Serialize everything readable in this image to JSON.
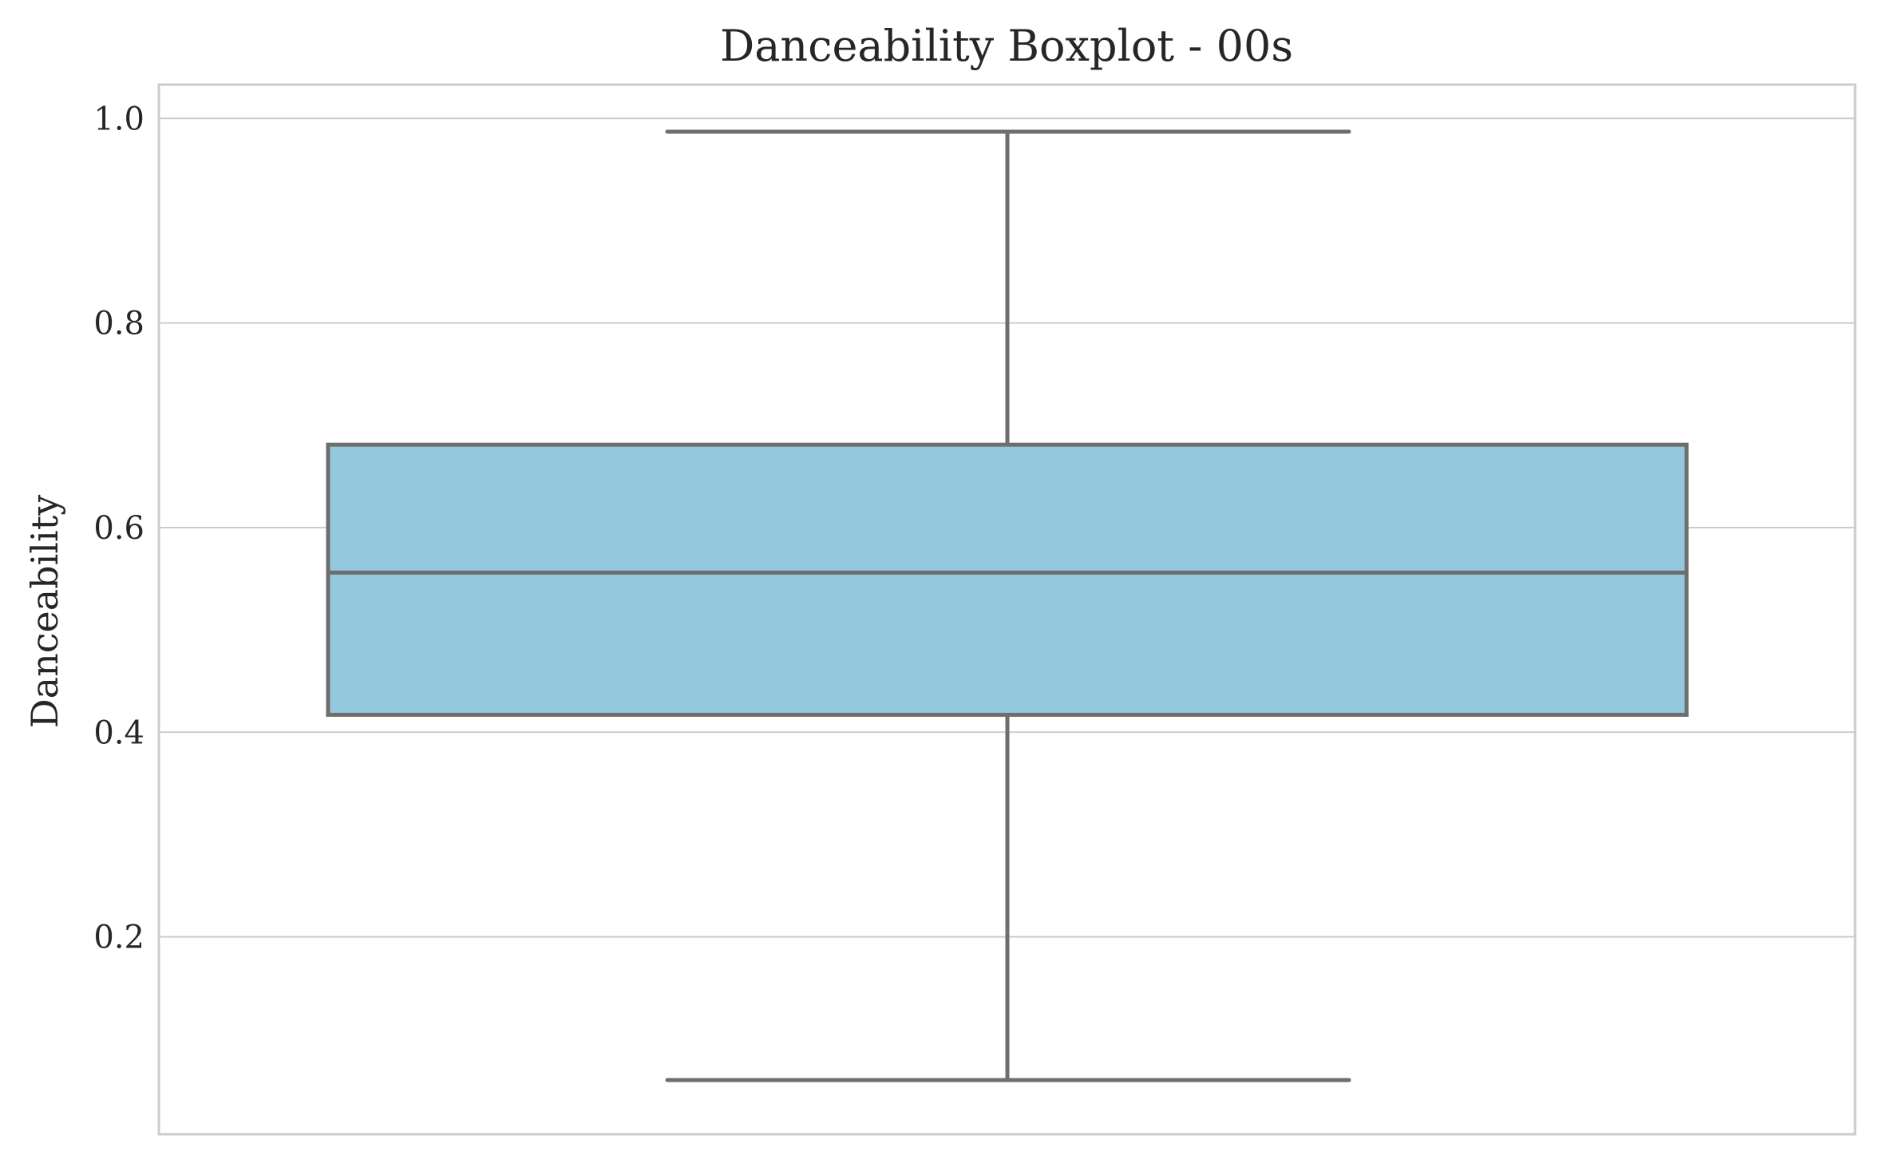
{
  "chart_data": {
    "type": "boxplot",
    "title": "Danceability Boxplot - 00s",
    "xlabel": "",
    "ylabel": "Danceability",
    "ylim": [
      0.007,
      1.033
    ],
    "yticks": [
      0.2,
      0.4,
      0.6,
      0.8,
      1.0
    ],
    "ytick_labels": [
      "0.2",
      "0.4",
      "0.6",
      "0.8",
      "1.0"
    ],
    "grid": true,
    "box": {
      "whisker_low": 0.06,
      "q1": 0.417,
      "median": 0.556,
      "q3": 0.681,
      "whisker_high": 0.987
    },
    "colors": {
      "box_fill": "#92c7de",
      "box_line": "#6e6e6e"
    }
  }
}
